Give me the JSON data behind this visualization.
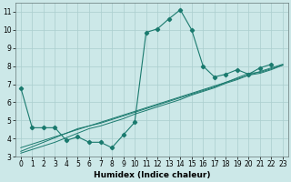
{
  "xlabel": "Humidex (Indice chaleur)",
  "x": [
    0,
    1,
    2,
    3,
    4,
    5,
    6,
    7,
    8,
    9,
    10,
    11,
    12,
    13,
    14,
    15,
    16,
    17,
    18,
    19,
    20,
    21,
    22,
    23
  ],
  "line_jagged": [
    6.8,
    4.6,
    4.6,
    4.6,
    3.9,
    4.1,
    3.8,
    3.8,
    3.5,
    4.2,
    4.9,
    9.85,
    10.05,
    10.6,
    11.1,
    10.0,
    8.0,
    7.4,
    7.55,
    7.8,
    7.55,
    7.9,
    8.1,
    null
  ],
  "line_reg1": [
    3.5,
    3.7,
    3.9,
    4.1,
    4.3,
    4.5,
    4.7,
    4.9,
    5.1,
    5.3,
    5.5,
    5.7,
    5.9,
    6.1,
    6.3,
    6.5,
    6.7,
    6.9,
    7.1,
    7.3,
    7.5,
    7.7,
    7.9,
    8.1
  ],
  "line_reg2": [
    3.3,
    3.55,
    3.8,
    4.05,
    4.3,
    4.55,
    4.7,
    4.85,
    5.05,
    5.25,
    5.45,
    5.65,
    5.85,
    6.05,
    6.25,
    6.45,
    6.65,
    6.85,
    7.1,
    7.35,
    7.6,
    7.65,
    7.85,
    8.05
  ],
  "line_reg3": [
    3.2,
    3.4,
    3.6,
    3.8,
    4.05,
    4.3,
    4.55,
    4.7,
    4.9,
    5.1,
    5.35,
    5.55,
    5.75,
    5.95,
    6.15,
    6.4,
    6.6,
    6.8,
    7.05,
    7.25,
    7.5,
    7.6,
    7.8,
    8.05
  ],
  "line_color": "#1a7a6e",
  "bg_color": "#cce8e8",
  "grid_color": "#aacece",
  "ylim": [
    3,
    11.5
  ],
  "xlim": [
    -0.5,
    23.5
  ],
  "yticks": [
    3,
    4,
    5,
    6,
    7,
    8,
    9,
    10,
    11
  ],
  "xticks": [
    0,
    1,
    2,
    3,
    4,
    5,
    6,
    7,
    8,
    9,
    10,
    11,
    12,
    13,
    14,
    15,
    16,
    17,
    18,
    19,
    20,
    21,
    22,
    23
  ],
  "tick_fontsize": 5.5,
  "xlabel_fontsize": 6.5
}
